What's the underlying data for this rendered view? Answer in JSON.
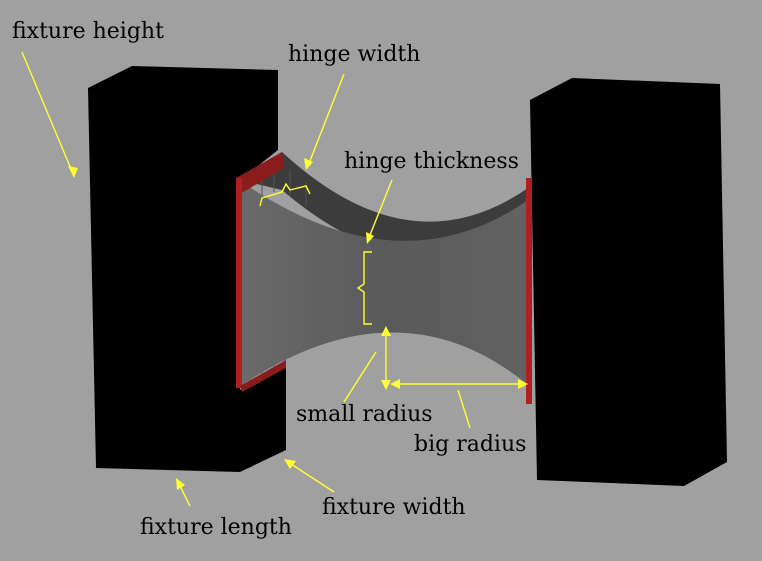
{
  "labels": {
    "fixture_height": "fixture height",
    "hinge_width": "hinge width",
    "hinge_thickness": "hinge thickness",
    "small_radius": "small radius",
    "big_radius": "big radius",
    "fixture_width": "fixture width",
    "fixture_length": "fixture length"
  },
  "colors": {
    "background": "#a0a0a0",
    "fixture": "#000000",
    "hinge": "#5e5e5e",
    "hinge_dark": "#3a3a3a",
    "clamp": "#b02020",
    "annotation": "#ffff33"
  }
}
